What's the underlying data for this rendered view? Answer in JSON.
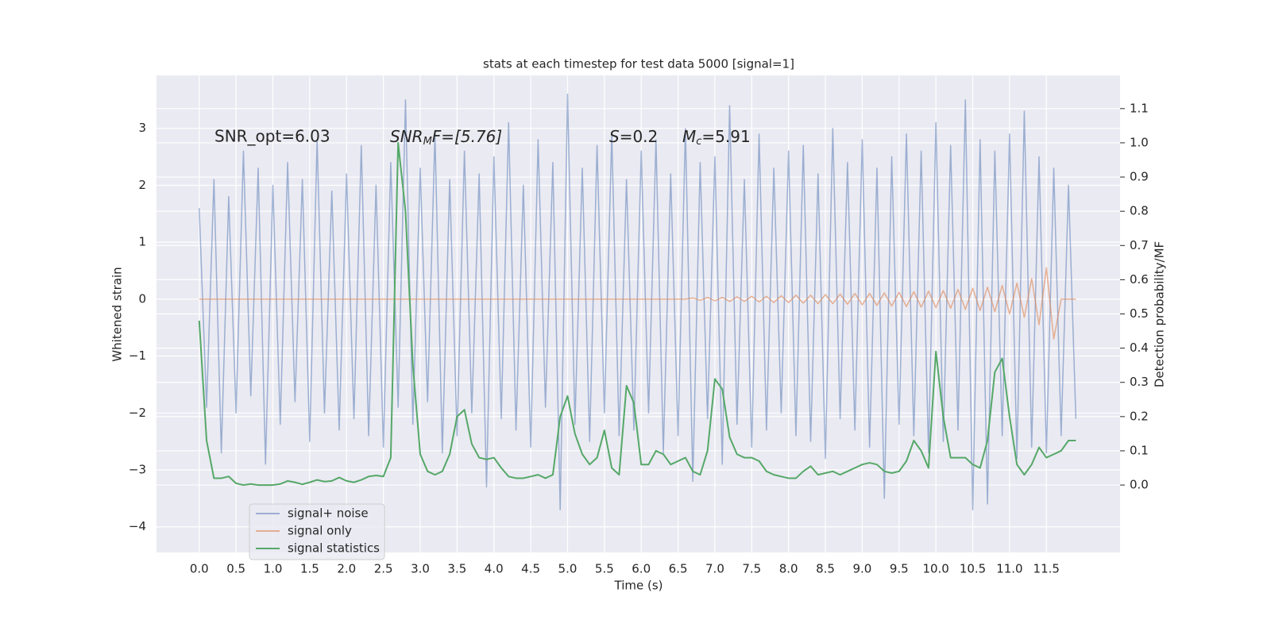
{
  "chart_data": {
    "type": "line",
    "title": "stats at each timestep for test data 5000 [signal=1]",
    "xlabel": "Time (s)",
    "ylabel": "Whitened strain",
    "y2label": "Detection probability/MF",
    "annotations": [
      {
        "main": "SNR_opt=6.03"
      },
      {
        "main": "SNR",
        "sub": "M",
        "rest": "F=[5.76]"
      },
      {
        "main": "S",
        "rest": "=0.2"
      },
      {
        "main": "M",
        "sub": "c",
        "rest": "=5.91"
      }
    ],
    "grid": true,
    "legend": "lower left",
    "xlim": [
      -0.58,
      12.5
    ],
    "ylim": [
      -4.45,
      3.93
    ],
    "y2lim": [
      -0.197,
      1.197
    ],
    "xticks": [
      {
        "value": 0,
        "label": "0.0"
      },
      {
        "value": 0.5,
        "label": "0.5"
      },
      {
        "value": 1,
        "label": "1.0"
      },
      {
        "value": 1.5,
        "label": "1.5"
      },
      {
        "value": 2,
        "label": "2.0"
      },
      {
        "value": 2.5,
        "label": "2.5"
      },
      {
        "value": 3,
        "label": "3.0"
      },
      {
        "value": 3.5,
        "label": "3.5"
      },
      {
        "value": 4,
        "label": "4.0"
      },
      {
        "value": 4.5,
        "label": "4.5"
      },
      {
        "value": 5,
        "label": "5.0"
      },
      {
        "value": 5.5,
        "label": "5.5"
      },
      {
        "value": 6,
        "label": "6.0"
      },
      {
        "value": 6.5,
        "label": "6.5"
      },
      {
        "value": 7,
        "label": "7.0"
      },
      {
        "value": 7.5,
        "label": "7.5"
      },
      {
        "value": 8,
        "label": "8.0"
      },
      {
        "value": 8.5,
        "label": "8.5"
      },
      {
        "value": 9,
        "label": "9.0"
      },
      {
        "value": 9.5,
        "label": "9.5"
      },
      {
        "value": 10,
        "label": "10.0"
      },
      {
        "value": 10.5,
        "label": "10.5"
      },
      {
        "value": 11,
        "label": "11.0"
      },
      {
        "value": 11.5,
        "label": "11.5"
      }
    ],
    "yticks": [
      {
        "value": -4,
        "label": "−4"
      },
      {
        "value": -3,
        "label": "−3"
      },
      {
        "value": -2,
        "label": "−2"
      },
      {
        "value": -1,
        "label": "−1"
      },
      0,
      1,
      2,
      3
    ],
    "y2ticks": [
      {
        "value": 0,
        "label": "0.0"
      },
      {
        "value": 0.1,
        "label": "0.1"
      },
      {
        "value": 0.2,
        "label": "0.2"
      },
      {
        "value": 0.3,
        "label": "0.3"
      },
      {
        "value": 0.4,
        "label": "0.4"
      },
      {
        "value": 0.5,
        "label": "0.5"
      },
      {
        "value": 0.6,
        "label": "0.6"
      },
      {
        "value": 0.7,
        "label": "0.7"
      },
      {
        "value": 0.8,
        "label": "0.8"
      },
      {
        "value": 0.9,
        "label": "0.9"
      },
      {
        "value": 1.0,
        "label": "1.0"
      },
      {
        "value": 1.1,
        "label": "1.1"
      }
    ],
    "x": [
      0,
      0.1,
      0.2,
      0.3,
      0.4,
      0.5,
      0.6,
      0.7,
      0.8,
      0.9,
      1,
      1.1,
      1.2,
      1.3,
      1.4,
      1.5,
      1.6,
      1.7,
      1.8,
      1.9,
      2,
      2.1,
      2.2,
      2.3,
      2.4,
      2.5,
      2.6,
      2.7,
      2.8,
      2.9,
      3,
      3.1,
      3.2,
      3.3,
      3.4,
      3.5,
      3.6,
      3.7,
      3.8,
      3.9,
      4,
      4.1,
      4.2,
      4.3,
      4.4,
      4.5,
      4.6,
      4.7,
      4.8,
      4.9,
      5,
      5.1,
      5.2,
      5.3,
      5.4,
      5.5,
      5.6,
      5.7,
      5.8,
      5.9,
      6,
      6.1,
      6.2,
      6.3,
      6.4,
      6.5,
      6.6,
      6.7,
      6.8,
      6.9,
      7,
      7.1,
      7.2,
      7.3,
      7.4,
      7.5,
      7.6,
      7.7,
      7.8,
      7.9,
      8,
      8.1,
      8.2,
      8.3,
      8.4,
      8.5,
      8.6,
      8.7,
      8.8,
      8.9,
      9,
      9.1,
      9.2,
      9.3,
      9.4,
      9.5,
      9.6,
      9.7,
      9.8,
      9.9,
      10,
      10.1,
      10.2,
      10.3,
      10.4,
      10.5,
      10.6,
      10.7,
      10.8,
      10.9,
      11,
      11.1,
      11.2,
      11.3,
      11.4,
      11.5,
      11.6,
      11.7,
      11.8,
      11.9
    ],
    "series": [
      {
        "name": "signal+ noise",
        "color": "#4c72b0",
        "opacity": 0.5,
        "values": [
          1.6,
          -1.9,
          2.1,
          -2.7,
          1.8,
          -2.0,
          2.6,
          -1.7,
          2.3,
          -2.9,
          2.0,
          -2.2,
          2.4,
          -1.8,
          2.1,
          -2.5,
          2.8,
          -2.0,
          1.9,
          -2.3,
          2.2,
          -2.1,
          2.7,
          -2.4,
          2.0,
          -2.6,
          2.4,
          -1.9,
          3.5,
          -2.2,
          2.3,
          -1.8,
          2.9,
          -2.7,
          2.1,
          -2.4,
          2.6,
          -2.0,
          2.2,
          -3.3,
          2.5,
          -2.1,
          3.1,
          -2.3,
          2.0,
          -2.6,
          2.8,
          -1.9,
          2.4,
          -3.7,
          3.6,
          -2.2,
          2.3,
          -2.5,
          2.7,
          -2.0,
          2.9,
          -2.4,
          2.1,
          -2.3,
          2.6,
          -2.0,
          2.8,
          -2.7,
          2.2,
          -2.4,
          3.0,
          -3.2,
          2.4,
          -2.1,
          2.5,
          -2.9,
          3.4,
          -2.2,
          2.1,
          -2.6,
          2.9,
          -2.3,
          2.3,
          -2.0,
          2.6,
          -2.4,
          2.7,
          -2.5,
          2.2,
          -2.8,
          3.0,
          -2.1,
          2.4,
          -2.3,
          2.8,
          -2.6,
          2.3,
          -3.5,
          2.5,
          -2.2,
          2.9,
          -2.4,
          2.6,
          -2.7,
          3.1,
          -2.5,
          2.7,
          -2.3,
          3.5,
          -3.7,
          2.8,
          -3.6,
          2.6,
          -2.4,
          2.9,
          -2.8,
          3.3,
          -2.6,
          2.5,
          -2.7,
          2.3,
          -2.4,
          2.0,
          -2.1
        ]
      },
      {
        "name": "signal only",
        "color": "#dd8452",
        "opacity": 0.6,
        "values": [
          0,
          0,
          0,
          0,
          0,
          0,
          0,
          0,
          0,
          0,
          0,
          0,
          0,
          0,
          0,
          0,
          0,
          0,
          0,
          0,
          0,
          0,
          0,
          0,
          0,
          0,
          0,
          0,
          0,
          0,
          0,
          0,
          0,
          0,
          0,
          0,
          0,
          0,
          0,
          0,
          0,
          0,
          0,
          0,
          0,
          0,
          0,
          0,
          0,
          0,
          0,
          0,
          0,
          0,
          0,
          0,
          0,
          0,
          0,
          0,
          0,
          0,
          0,
          0,
          0,
          0,
          0,
          0.02,
          -0.02,
          0.03,
          -0.03,
          0.03,
          -0.04,
          0.04,
          -0.04,
          0.05,
          -0.05,
          0.05,
          -0.06,
          0.06,
          -0.06,
          0.07,
          -0.07,
          0.07,
          -0.08,
          0.08,
          -0.08,
          0.09,
          -0.09,
          0.1,
          -0.1,
          0.1,
          -0.11,
          0.11,
          -0.12,
          0.12,
          -0.13,
          0.13,
          -0.14,
          0.14,
          -0.15,
          0.15,
          -0.16,
          0.17,
          -0.18,
          0.19,
          -0.2,
          0.21,
          -0.22,
          0.24,
          -0.26,
          0.28,
          -0.32,
          0.36,
          -0.45,
          0.55,
          -0.7,
          0,
          0,
          0
        ]
      },
      {
        "name": "signal statistics",
        "color": "#55a868",
        "opacity": 1,
        "axis": "y2",
        "values": [
          0.48,
          0.13,
          0.02,
          0.02,
          0.025,
          0.005,
          0.0,
          0.003,
          0.0,
          0.0,
          0.0,
          0.003,
          0.012,
          0.008,
          0.002,
          0.008,
          0.015,
          0.01,
          0.012,
          0.022,
          0.012,
          0.008,
          0.015,
          0.025,
          0.028,
          0.025,
          0.08,
          1.0,
          0.8,
          0.35,
          0.09,
          0.04,
          0.03,
          0.04,
          0.09,
          0.2,
          0.22,
          0.12,
          0.08,
          0.075,
          0.08,
          0.05,
          0.025,
          0.02,
          0.02,
          0.025,
          0.03,
          0.02,
          0.03,
          0.2,
          0.26,
          0.15,
          0.09,
          0.06,
          0.08,
          0.16,
          0.05,
          0.03,
          0.29,
          0.24,
          0.06,
          0.06,
          0.1,
          0.09,
          0.06,
          0.07,
          0.08,
          0.04,
          0.03,
          0.1,
          0.31,
          0.28,
          0.14,
          0.09,
          0.08,
          0.08,
          0.07,
          0.04,
          0.03,
          0.025,
          0.02,
          0.02,
          0.04,
          0.055,
          0.03,
          0.035,
          0.04,
          0.03,
          0.04,
          0.05,
          0.06,
          0.065,
          0.06,
          0.04,
          0.035,
          0.04,
          0.07,
          0.13,
          0.1,
          0.05,
          0.39,
          0.2,
          0.08,
          0.08,
          0.08,
          0.06,
          0.05,
          0.13,
          0.33,
          0.37,
          0.2,
          0.06,
          0.03,
          0.06,
          0.11,
          0.08,
          0.09,
          0.1,
          0.13,
          0.13
        ]
      }
    ]
  }
}
